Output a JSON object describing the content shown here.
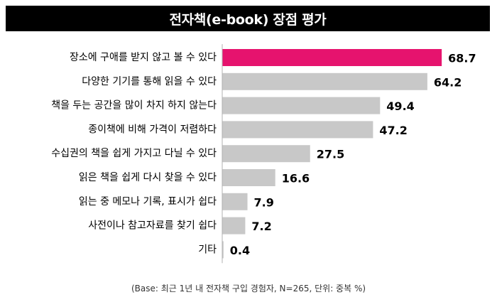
{
  "chart_title": "전자책(e-book) 장점 평가",
  "footnote": "(Base: 최근 1년 내 전자책 구입 경험자, N=265, 단위: 중복 %)",
  "colors": {
    "highlight": "#E6136E",
    "bar": "#C8C8C8",
    "axis": "#B0B0B0",
    "text": "#000000"
  },
  "chart_data": {
    "type": "bar",
    "orientation": "horizontal",
    "title": "전자책(e-book) 장점 평가",
    "xlim": [
      0,
      80
    ],
    "categories": [
      "장소에 구애를 받지 않고 볼 수 있다",
      "다양한 기기를 통해 읽을 수 있다",
      "책을 두는 공간을 많이 차지 하지 않는다",
      "종이책에 비해 가격이 저렴하다",
      "수십권의 책을 쉽게 가지고 다닐 수 있다",
      "읽은 책을 쉽게 다시 찾을 수 있다",
      "읽는 중 메모나 기록, 표시가 쉽다",
      "사전이나 참고자료를 찾기 쉽다",
      "기타"
    ],
    "values": [
      68.7,
      64.2,
      49.4,
      47.2,
      27.5,
      16.6,
      7.9,
      7.2,
      0.4
    ],
    "value_labels": [
      "68.7",
      "64.2",
      "49.4",
      "47.2",
      "27.5",
      "16.6",
      "7.9",
      "7.2",
      "0.4"
    ],
    "highlighted_index": 0,
    "grid": false
  }
}
